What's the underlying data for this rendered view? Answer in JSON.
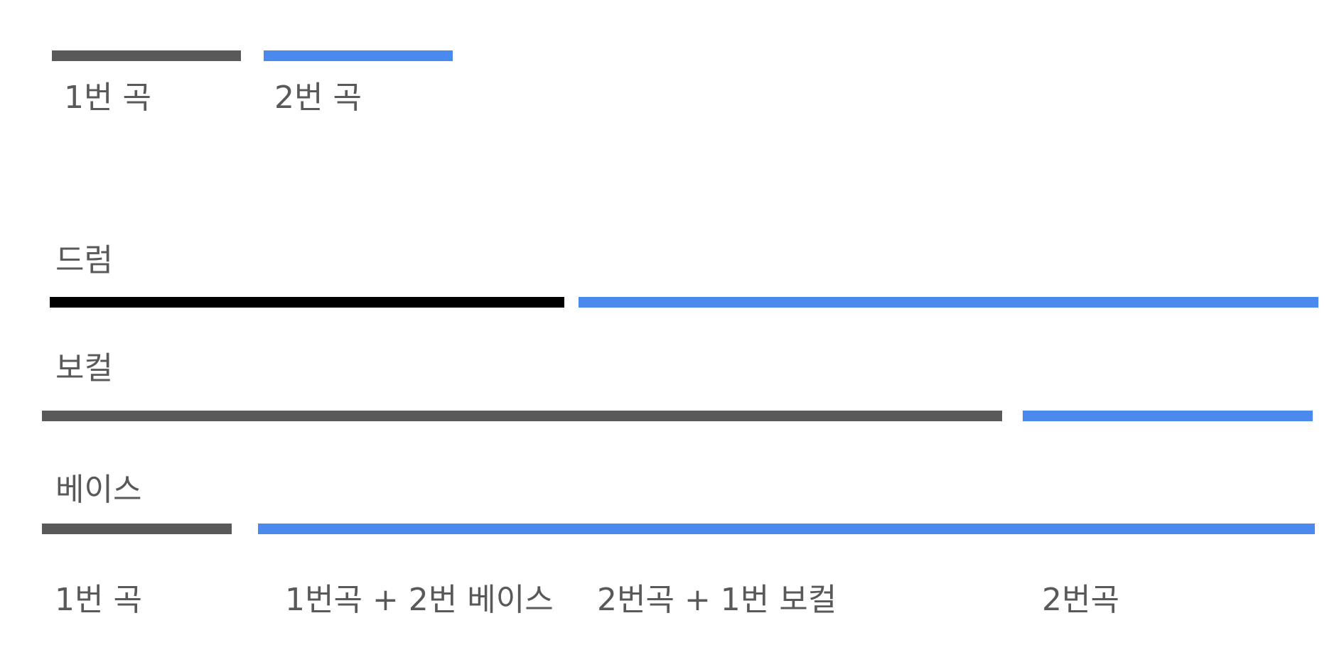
{
  "colors": {
    "song1": "#595959",
    "song2": "#4a89ee",
    "drum_song1": "#000000",
    "text": "#595959"
  },
  "legend": {
    "song1_label": "1번 곡",
    "song2_label": "2번 곡"
  },
  "tracks": {
    "drum": {
      "label": "드럼"
    },
    "vocal": {
      "label": "보컬"
    },
    "bass": {
      "label": "베이스"
    }
  },
  "timeline": {
    "labels": [
      "1번 곡",
      "1번곡 + 2번 베이스",
      "2번곡 + 1번 보컬",
      "2번곡"
    ]
  }
}
